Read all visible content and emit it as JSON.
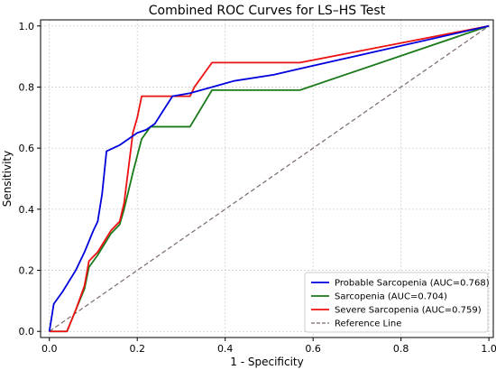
{
  "chart_data": {
    "type": "line",
    "title": "Combined ROC Curves for LS–HS Test",
    "xlabel": "1 - Specificity",
    "ylabel": "Sensitivity",
    "xlim": [
      -0.02,
      1.01
    ],
    "ylim": [
      -0.02,
      1.02
    ],
    "xticks": [
      "0.0",
      "0.2",
      "0.4",
      "0.6",
      "0.8",
      "1.0"
    ],
    "yticks": [
      "0.0",
      "0.2",
      "0.4",
      "0.6",
      "0.8",
      "1.0"
    ],
    "xtick_values": [
      0,
      0.2,
      0.4,
      0.6,
      0.8,
      1.0
    ],
    "ytick_values": [
      0,
      0.2,
      0.4,
      0.6,
      0.8,
      1.0
    ],
    "grid": true,
    "legend_position": "bottom-right",
    "series": [
      {
        "name": "Probable Sarcopenia (AUC=0.768)",
        "color": "#0000dd",
        "dash": false,
        "x": [
          0.0,
          0.01,
          0.03,
          0.06,
          0.08,
          0.1,
          0.11,
          0.12,
          0.13,
          0.16,
          0.18,
          0.2,
          0.22,
          0.24,
          0.28,
          0.32,
          0.37,
          0.42,
          0.51,
          0.57,
          1.0
        ],
        "y": [
          0.0,
          0.09,
          0.13,
          0.2,
          0.26,
          0.33,
          0.36,
          0.45,
          0.59,
          0.61,
          0.63,
          0.65,
          0.66,
          0.68,
          0.77,
          0.78,
          0.8,
          0.82,
          0.84,
          0.86,
          1.0
        ]
      },
      {
        "name": "Sarcopenia (AUC=0.704)",
        "color": "#1a7a1a",
        "dash": false,
        "x": [
          0.0,
          0.02,
          0.04,
          0.06,
          0.08,
          0.09,
          0.11,
          0.14,
          0.16,
          0.17,
          0.19,
          0.21,
          0.23,
          0.32,
          0.37,
          0.57,
          1.0
        ],
        "y": [
          0.0,
          0.0,
          0.0,
          0.07,
          0.14,
          0.21,
          0.25,
          0.32,
          0.35,
          0.4,
          0.52,
          0.63,
          0.67,
          0.67,
          0.79,
          0.79,
          1.0
        ]
      },
      {
        "name": "Severe Sarcopenia (AUC=0.759)",
        "color": "#ee1111",
        "dash": false,
        "x": [
          0.0,
          0.02,
          0.04,
          0.06,
          0.08,
          0.09,
          0.11,
          0.14,
          0.16,
          0.17,
          0.19,
          0.2,
          0.21,
          0.32,
          0.33,
          0.37,
          0.57,
          1.0
        ],
        "y": [
          0.0,
          0.0,
          0.0,
          0.07,
          0.15,
          0.23,
          0.26,
          0.33,
          0.36,
          0.42,
          0.65,
          0.7,
          0.77,
          0.77,
          0.8,
          0.88,
          0.88,
          1.0
        ]
      },
      {
        "name": "Reference Line",
        "color": "#7a6a6a",
        "dash": true,
        "x": [
          0.0,
          1.0
        ],
        "y": [
          0.0,
          1.0
        ]
      }
    ]
  }
}
